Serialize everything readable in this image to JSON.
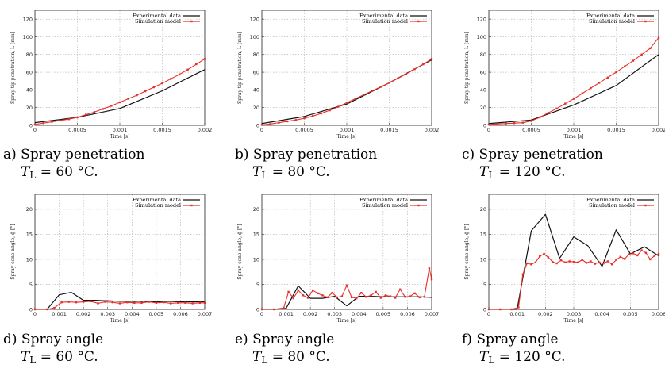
{
  "colors": {
    "experimental": "#111111",
    "simulation": "#e8302b",
    "grid": "#9a9a9a"
  },
  "captions": [
    {
      "line1": "a) Spray penetration",
      "var": "T",
      "sub": "L",
      "line2": " = 60 °C."
    },
    {
      "line1": "b) Spray penetration",
      "var": "T",
      "sub": "L",
      "line2": " = 80 °C."
    },
    {
      "line1": "c) Spray penetration",
      "var": "T",
      "sub": "L",
      "line2": " = 120 °C."
    },
    {
      "line1": "d) Spray angle",
      "var": "T",
      "sub": "L",
      "line2": " = 60 °C."
    },
    {
      "line1": "e) Spray angle",
      "var": "T",
      "sub": "L",
      "line2": " = 80 °C."
    },
    {
      "line1": "f) Spray angle",
      "var": "T",
      "sub": "L",
      "line2": " = 120 °C."
    }
  ],
  "chart_data": [
    {
      "type": "line",
      "xlabel": "Time [s]",
      "ylabel": "Spray tip penetration, L [mm]",
      "xlim": [
        0,
        0.002
      ],
      "ylim": [
        0,
        130
      ],
      "xticks": [
        "0",
        "0.0005",
        "0.001",
        "0.0015",
        "0.002"
      ],
      "yticks": [
        "0",
        "20",
        "40",
        "60",
        "80",
        "100",
        "120"
      ],
      "legend_position": "top-right",
      "grid": true,
      "series": [
        {
          "name": "Experimental data",
          "color": "#111111",
          "marker": false,
          "x": [
            0,
            0.0005,
            0.001,
            0.0015,
            0.002
          ],
          "y": [
            3,
            9,
            19,
            39,
            63
          ]
        },
        {
          "name": "Simulation model",
          "color": "#e8302b",
          "marker": true,
          "x": [
            0,
            0.0001,
            0.0002,
            0.0003,
            0.0004,
            0.0005,
            0.0006,
            0.0007,
            0.0008,
            0.0009,
            0.001,
            0.0011,
            0.0012,
            0.0013,
            0.0014,
            0.0015,
            0.0016,
            0.0017,
            0.0018,
            0.0019,
            0.002
          ],
          "y": [
            1,
            2.5,
            4,
            5.5,
            7,
            9,
            12,
            15,
            18.5,
            22,
            26,
            30,
            34,
            38.5,
            43,
            47.5,
            52.5,
            57.5,
            63,
            69,
            75
          ]
        }
      ]
    },
    {
      "type": "line",
      "xlabel": "Time [s]",
      "ylabel": "Spray tip penetration, L [mm]",
      "xlim": [
        0,
        0.002
      ],
      "ylim": [
        0,
        130
      ],
      "xticks": [
        "0",
        "0.0005",
        "0.001",
        "0.0015",
        "0.002"
      ],
      "yticks": [
        "0",
        "20",
        "40",
        "60",
        "80",
        "100",
        "120"
      ],
      "legend_position": "top-right",
      "grid": true,
      "series": [
        {
          "name": "Experimental data",
          "color": "#111111",
          "marker": false,
          "x": [
            0,
            0.0005,
            0.001,
            0.0015,
            0.002
          ],
          "y": [
            2,
            10,
            24,
            48,
            74
          ]
        },
        {
          "name": "Simulation model",
          "color": "#e8302b",
          "marker": true,
          "x": [
            0,
            0.0001,
            0.0002,
            0.0003,
            0.0004,
            0.0005,
            0.0006,
            0.0007,
            0.0008,
            0.0009,
            0.001,
            0.0011,
            0.0012,
            0.0013,
            0.0014,
            0.0015,
            0.0016,
            0.0017,
            0.0018,
            0.0019,
            0.002
          ],
          "y": [
            0.5,
            1.5,
            3,
            4.5,
            6,
            8,
            10.5,
            13.5,
            17,
            21,
            25.5,
            30,
            34.5,
            39,
            43.5,
            48,
            53,
            58,
            63.5,
            69,
            75
          ]
        }
      ]
    },
    {
      "type": "line",
      "xlabel": "Time [s]",
      "ylabel": "Spray tip penetration, L [mm]",
      "xlim": [
        0,
        0.002
      ],
      "ylim": [
        0,
        130
      ],
      "xticks": [
        "0",
        "0.0005",
        "0.001",
        "0.0015",
        "0.002"
      ],
      "yticks": [
        "0",
        "20",
        "40",
        "60",
        "80",
        "100",
        "120"
      ],
      "legend_position": "top-right",
      "grid": true,
      "series": [
        {
          "name": "Experimental data",
          "color": "#111111",
          "marker": false,
          "x": [
            0,
            0.0005,
            0.001,
            0.0015,
            0.002
          ],
          "y": [
            2,
            6,
            23,
            45,
            80
          ]
        },
        {
          "name": "Simulation model",
          "color": "#e8302b",
          "marker": true,
          "x": [
            0,
            0.0001,
            0.0002,
            0.0003,
            0.0004,
            0.0005,
            0.0006,
            0.0007,
            0.0008,
            0.0009,
            0.001,
            0.0011,
            0.0012,
            0.0013,
            0.0014,
            0.0015,
            0.0016,
            0.0017,
            0.0018,
            0.0019,
            0.002
          ],
          "y": [
            1,
            1.5,
            2,
            2.5,
            3,
            5,
            9,
            14,
            19,
            24.5,
            30,
            36,
            42,
            48,
            54,
            60,
            66.5,
            73,
            80,
            87,
            99
          ]
        }
      ]
    },
    {
      "type": "line",
      "xlabel": "Time [s]",
      "ylabel": "Spray cone angle, ϕ [°]",
      "xlim": [
        0,
        0.007
      ],
      "ylim": [
        0,
        23
      ],
      "xticks": [
        "0",
        "0.001",
        "0.002",
        "0.003",
        "0.004",
        "0.005",
        "0.006",
        "0.007"
      ],
      "yticks": [
        "0",
        "5",
        "10",
        "15",
        "20"
      ],
      "legend_position": "top-right",
      "grid": true,
      "series": [
        {
          "name": "Experimental data",
          "color": "#111111",
          "marker": false,
          "x": [
            0,
            0.0005,
            0.001,
            0.0015,
            0.002,
            0.0025,
            0.003,
            0.0035,
            0.004,
            0.0045,
            0.005,
            0.0055,
            0.006,
            0.0065,
            0.007
          ],
          "y": [
            0,
            0,
            2.9,
            3.4,
            1.8,
            1.8,
            1.7,
            1.6,
            1.6,
            1.6,
            1.5,
            1.6,
            1.5,
            1.5,
            1.5
          ]
        },
        {
          "name": "Simulation model",
          "color": "#e8302b",
          "marker": true,
          "x": [
            0,
            0.0005,
            0.0008,
            0.0011,
            0.0014,
            0.0017,
            0.002,
            0.0023,
            0.0026,
            0.0029,
            0.0032,
            0.0035,
            0.0038,
            0.0041,
            0.0044,
            0.0047,
            0.005,
            0.0053,
            0.0056,
            0.0059,
            0.0062,
            0.0065,
            0.0068,
            0.007
          ],
          "y": [
            0,
            0,
            0.3,
            1.4,
            1.5,
            1.4,
            1.5,
            1.6,
            1.2,
            1.5,
            1.4,
            1.2,
            1.4,
            1.3,
            1.3,
            1.5,
            1.3,
            1.4,
            1.2,
            1.3,
            1.3,
            1.2,
            1.3,
            1.3
          ]
        }
      ]
    },
    {
      "type": "line",
      "xlabel": "Time [s]",
      "ylabel": "Spray cone angle, ϕ [°]",
      "xlim": [
        0,
        0.007
      ],
      "ylim": [
        0,
        23
      ],
      "xticks": [
        "0",
        "0.001",
        "0.002",
        "0.003",
        "0.004",
        "0.005",
        "0.006",
        "0.007"
      ],
      "yticks": [
        "0",
        "5",
        "10",
        "15",
        "20"
      ],
      "legend_position": "top-right",
      "grid": true,
      "series": [
        {
          "name": "Experimental data",
          "color": "#111111",
          "marker": false,
          "x": [
            0,
            0.0005,
            0.001,
            0.0015,
            0.002,
            0.0025,
            0.003,
            0.0035,
            0.004,
            0.0045,
            0.005,
            0.0055,
            0.006,
            0.0065,
            0.007
          ],
          "y": [
            0,
            0,
            0.2,
            4.7,
            2.2,
            2.2,
            2.6,
            0.7,
            2.6,
            2.6,
            2.5,
            2.5,
            2.5,
            2.5,
            2.4
          ]
        },
        {
          "name": "Simulation model",
          "color": "#e8302b",
          "marker": true,
          "x": [
            0,
            0.0005,
            0.0009,
            0.0011,
            0.0013,
            0.0015,
            0.0017,
            0.0019,
            0.0021,
            0.0023,
            0.0025,
            0.0027,
            0.0029,
            0.0031,
            0.0033,
            0.0035,
            0.0037,
            0.0039,
            0.0041,
            0.0043,
            0.0045,
            0.0047,
            0.0049,
            0.0051,
            0.0053,
            0.0055,
            0.0057,
            0.0059,
            0.0061,
            0.0063,
            0.0065,
            0.0067,
            0.0069,
            0.007
          ],
          "y": [
            0,
            0,
            0.3,
            3.5,
            2.2,
            3.8,
            2.8,
            2.3,
            3.8,
            3.2,
            2.8,
            2.4,
            3.3,
            2.4,
            2.6,
            4.8,
            2.4,
            2.2,
            3.3,
            2.5,
            2.8,
            3.5,
            2.3,
            2.8,
            2.6,
            2.3,
            4.0,
            2.5,
            2.6,
            3.2,
            2.4,
            2.5,
            8.2,
            6.0
          ]
        }
      ]
    },
    {
      "type": "line",
      "xlabel": "Time [s]",
      "ylabel": "Spray cone angle, ϕ [°]",
      "xlim": [
        0,
        0.006
      ],
      "ylim": [
        0,
        23
      ],
      "xticks": [
        "0",
        "0.001",
        "0.002",
        "0.003",
        "0.004",
        "0.005",
        "0.006"
      ],
      "yticks": [
        "0",
        "5",
        "10",
        "15",
        "20"
      ],
      "legend_position": "top-right",
      "grid": true,
      "series": [
        {
          "name": "Experimental data",
          "color": "#111111",
          "marker": false,
          "x": [
            0,
            0.001,
            0.0015,
            0.002,
            0.0025,
            0.003,
            0.0035,
            0.004,
            0.0045,
            0.005,
            0.0055,
            0.006
          ],
          "y": [
            0,
            0,
            15.7,
            19.0,
            10.2,
            14.5,
            12.7,
            8.6,
            15.9,
            11.1,
            12.5,
            10.7
          ]
        },
        {
          "name": "Simulation model",
          "color": "#e8302b",
          "marker": true,
          "x": [
            0,
            0.0004,
            0.0008,
            0.00105,
            0.0012,
            0.00135,
            0.0015,
            0.00165,
            0.0018,
            0.00195,
            0.0021,
            0.00225,
            0.0024,
            0.00255,
            0.0027,
            0.00285,
            0.003,
            0.00315,
            0.0033,
            0.00345,
            0.0036,
            0.00375,
            0.0039,
            0.00405,
            0.0042,
            0.00435,
            0.0045,
            0.00465,
            0.0048,
            0.00495,
            0.0051,
            0.00525,
            0.0054,
            0.00555,
            0.0057,
            0.00585,
            0.006
          ],
          "y": [
            0,
            0,
            0,
            0.4,
            7.0,
            9.2,
            9.0,
            9.4,
            10.6,
            11.1,
            10.4,
            9.5,
            9.2,
            9.8,
            9.4,
            9.6,
            9.5,
            9.4,
            9.9,
            9.3,
            9.6,
            9.1,
            9.4,
            9.2,
            9.6,
            9.0,
            9.9,
            10.5,
            10.1,
            11.0,
            11.2,
            10.8,
            11.8,
            11.3,
            10.0,
            10.7,
            11.1
          ]
        }
      ]
    }
  ]
}
